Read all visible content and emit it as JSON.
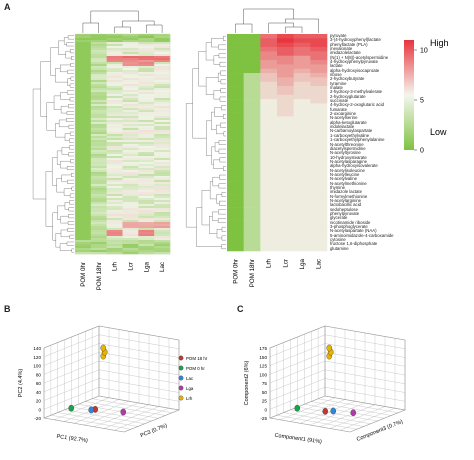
{
  "panels": {
    "a": "A",
    "b": "B",
    "c": "C"
  },
  "colors": {
    "low": "#7fc241",
    "mid": "#eef4e6",
    "high": "#e8353e"
  },
  "chart_data": [
    {
      "type": "heatmap",
      "panel": "A-left",
      "columns": [
        "POM 0hr",
        "POM 18hr",
        "Lrh",
        "Lcr",
        "Lga",
        "Lac"
      ],
      "note_rows": "dense unlabelled rows",
      "hot_bands": [
        {
          "row_frac": 0.11,
          "cols": [
            2,
            3,
            4,
            5
          ],
          "level": 7
        },
        {
          "row_frac": 0.13,
          "cols": [
            3,
            4
          ],
          "level": 6
        },
        {
          "row_frac": 0.86,
          "cols": [
            3,
            4,
            5
          ],
          "level": 5
        },
        {
          "row_frac": 0.9,
          "cols": [
            2,
            4
          ],
          "level": 6
        }
      ]
    },
    {
      "type": "heatmap",
      "panel": "A-right",
      "columns": [
        "POM 0hr",
        "POM 18hr",
        "Lrh",
        "Lcr",
        "Lga",
        "Lac"
      ],
      "rows": [
        "pyruvate",
        "3-(4-hydroxyphenyl)lactate",
        "phenyllactate (PLA)",
        "mevalonate",
        "imidazolelactate",
        "(N(1) + N(8))-acetylspermidine",
        "4-hydroxyphenylpyruvate",
        "lactate",
        "alpha-hydroxyisocaproate",
        "ribose",
        "2-hydroxybutyrate",
        "tyramine",
        "malate",
        "2-hydroxy-3-methylvalerate",
        "2-hydroxyglutarate",
        "succinate",
        "4-hydroxy-2-oxoglutaric acid",
        "fumarate",
        "2-oxoarginine",
        "N-acetylserine",
        "alpha-ketoglutarate",
        "indolelactate",
        "N-carbamoylaspartate",
        "1-carboxyethylvaline",
        "1-carboxyethylphenylalanine",
        "N-acetylthreonine",
        "diacetylspermidine",
        "N-acetyltyrosine",
        "10-hydroxystearate",
        "N-acetylasparagine",
        "alpha-hydroxyisovalerate",
        "N-acetylisoleucine",
        "N-acetylleucine",
        "N-acetylvaline",
        "N-acetylmethionine",
        "thymine",
        "imidazole lactate",
        "N-formylmethionine",
        "N-acetylarginine",
        "lactobacillic acid",
        "sedoheptulose",
        "phenylpyruvate",
        "glycerate",
        "nicotinamide riboside",
        "3-phosphoglycerate",
        "N-acetylaspartate (NAA)",
        "5-aminoimidazole-4-carboxamide",
        "cytosine",
        "fructose 1,6-diphosphate",
        "glutamine"
      ],
      "values": [
        [
          0,
          0,
          8,
          10,
          9,
          9
        ],
        [
          0,
          0,
          9,
          11,
          10,
          10
        ],
        [
          0,
          0,
          9,
          10,
          9,
          10
        ],
        [
          0,
          0,
          8,
          9,
          8,
          9
        ],
        [
          0,
          0,
          7,
          9,
          8,
          8
        ],
        [
          0,
          0,
          7,
          7,
          6,
          8
        ],
        [
          0,
          0,
          6,
          7,
          6,
          7
        ],
        [
          0,
          0,
          6,
          6,
          6,
          6
        ],
        [
          0,
          0,
          5,
          6,
          5,
          6
        ],
        [
          0,
          1,
          4,
          6,
          4,
          5
        ],
        [
          0,
          1,
          4,
          5,
          4,
          4
        ],
        [
          0,
          1,
          3,
          5,
          3,
          4
        ],
        [
          0,
          1,
          3,
          4,
          3,
          3
        ],
        [
          0,
          1,
          3,
          4,
          3,
          3
        ],
        [
          0,
          1,
          3,
          3,
          3,
          3
        ],
        [
          0,
          1,
          2,
          3,
          2,
          3
        ],
        [
          0,
          1,
          2,
          3,
          2,
          2
        ],
        [
          0,
          1,
          2,
          3,
          2,
          2
        ],
        [
          0,
          1,
          2,
          3,
          2,
          2
        ],
        [
          0,
          1,
          2,
          2,
          2,
          2
        ],
        [
          0,
          1,
          2,
          2,
          2,
          2
        ],
        [
          0,
          1,
          2,
          2,
          2,
          2
        ],
        [
          0,
          1,
          2,
          2,
          2,
          2
        ],
        [
          0,
          1,
          2,
          2,
          2,
          2
        ],
        [
          0,
          1,
          2,
          2,
          2,
          2
        ],
        [
          0,
          1,
          2,
          2,
          2,
          2
        ],
        [
          0,
          1,
          2,
          2,
          2,
          2
        ],
        [
          0,
          1,
          2,
          2,
          2,
          2
        ],
        [
          0,
          1,
          2,
          2,
          2,
          2
        ],
        [
          0,
          1,
          2,
          2,
          2,
          2
        ],
        [
          0,
          1,
          2,
          2,
          2,
          2
        ],
        [
          0,
          1,
          2,
          2,
          2,
          2
        ],
        [
          0,
          1,
          2,
          2,
          2,
          2
        ],
        [
          0,
          1,
          2,
          2,
          2,
          2
        ],
        [
          0,
          1,
          2,
          2,
          2,
          2
        ],
        [
          0,
          1,
          2,
          2,
          2,
          2
        ],
        [
          0,
          1,
          2,
          2,
          2,
          2
        ],
        [
          0,
          1,
          2,
          2,
          2,
          2
        ],
        [
          0,
          1,
          2,
          2,
          2,
          2
        ],
        [
          0,
          1,
          2,
          2,
          2,
          2
        ],
        [
          0,
          1,
          2,
          2,
          2,
          2
        ],
        [
          0,
          1,
          2,
          2,
          2,
          2
        ],
        [
          0,
          1,
          2,
          2,
          2,
          2
        ],
        [
          0,
          1,
          2,
          2,
          2,
          2
        ],
        [
          0,
          1,
          2,
          2,
          2,
          2
        ],
        [
          0,
          1,
          2,
          2,
          2,
          2
        ],
        [
          0,
          1,
          2,
          2,
          2,
          2
        ],
        [
          0,
          1,
          2,
          2,
          2,
          2
        ],
        [
          0,
          1,
          2,
          2,
          2,
          2
        ],
        [
          0,
          1,
          2,
          2,
          2,
          2
        ]
      ],
      "legend": {
        "ticks": [
          10,
          5,
          0
        ],
        "high_label": "High",
        "low_label": "Low",
        "range": [
          0,
          11
        ]
      }
    },
    {
      "type": "scatter",
      "panel": "B",
      "xlabel": "PC1 (92.7%)",
      "ylabel": "PC2 (4.4%)",
      "zlabel": "PC3 (0.7%)",
      "yticks": [
        140,
        120,
        100,
        80,
        60,
        40,
        20,
        0,
        -20
      ],
      "legend": [
        "POM 18 hr",
        "POM 0 hr",
        "Lac",
        "Lga",
        "Lrh"
      ],
      "series": [
        {
          "name": "POM 18 hr",
          "color": "#c0392b",
          "points": [
            [
              -10,
              -5,
              0
            ]
          ]
        },
        {
          "name": "POM 0 hr",
          "color": "#1aa34a",
          "points": [
            [
              -40,
              -12,
              0
            ]
          ]
        },
        {
          "name": "Lac",
          "color": "#2e86de",
          "points": [
            [
              -15,
              -8,
              0
            ]
          ]
        },
        {
          "name": "Lga",
          "color": "#b03aa6",
          "points": [
            [
              25,
              0,
              0
            ]
          ]
        },
        {
          "name": "Lrh",
          "color": "#e8b400",
          "points": [
            [
              0,
              120,
              0
            ]
          ]
        }
      ]
    },
    {
      "type": "scatter",
      "panel": "C",
      "xlabel": "Component1 (91%)",
      "ylabel": "Component2 (6%)",
      "zlabel": "Component3 (0.7%)",
      "yticks": [
        175,
        150,
        125,
        100,
        75,
        50,
        25,
        0,
        -25
      ],
      "series": [
        {
          "name": "POM 18 hr",
          "color": "#c0392b",
          "points": [
            [
              -5,
              -10,
              0
            ]
          ]
        },
        {
          "name": "POM 0 hr",
          "color": "#1aa34a",
          "points": [
            [
              -40,
              -15,
              0
            ]
          ]
        },
        {
          "name": "Lac",
          "color": "#2e86de",
          "points": [
            [
              5,
              -5,
              0
            ]
          ]
        },
        {
          "name": "Lga",
          "color": "#b03aa6",
          "points": [
            [
              30,
              0,
              0
            ]
          ]
        },
        {
          "name": "Lrh",
          "color": "#e8b400",
          "points": [
            [
              0,
              150,
              0
            ]
          ]
        }
      ]
    }
  ]
}
